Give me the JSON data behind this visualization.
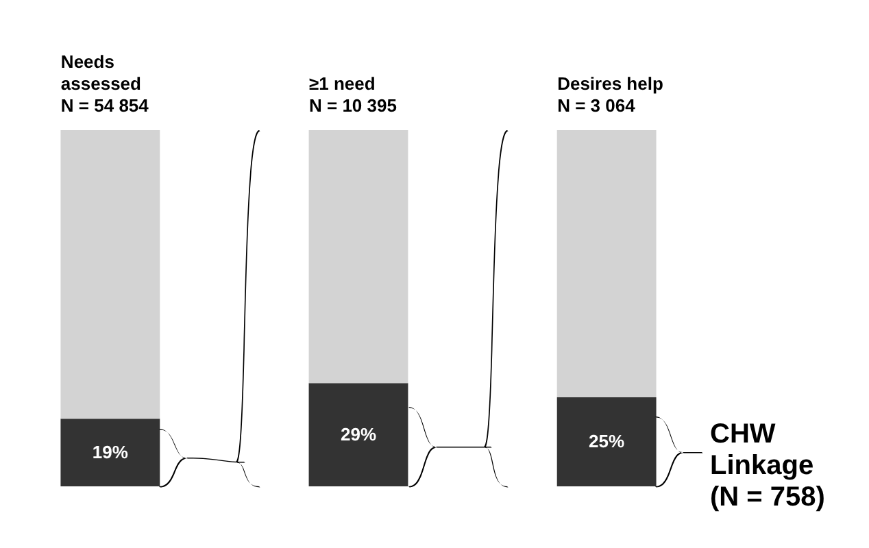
{
  "chart_data": {
    "type": "bar",
    "stacked": true,
    "categories": [
      "Needs\nassessed\nN = 54 854",
      "≥1 need\nN = 10 395",
      "Desires help\nN = 3 064"
    ],
    "series": [
      {
        "color": "#333333",
        "values": [
          19,
          29,
          25
        ],
        "value_labels": [
          "19%",
          "29%",
          "25%"
        ]
      },
      {
        "color": "#d3d3d3",
        "values": [
          81,
          71,
          75
        ]
      }
    ],
    "ylim": [
      0,
      100
    ],
    "tick_labels": "x",
    "legend": false,
    "grid": false,
    "annotations": [
      "CHW\nLinkage\n(N = 758)"
    ]
  }
}
